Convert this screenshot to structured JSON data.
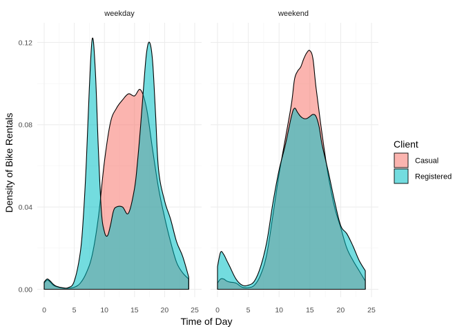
{
  "chart_data": {
    "type": "area",
    "subtype": "density",
    "facets": [
      "weekday",
      "weekend"
    ],
    "xlabel": "Time of Day",
    "ylabel": "Density of Bike Rentals",
    "xlim": [
      0,
      24
    ],
    "ylim": [
      0,
      0.125
    ],
    "x_ticks": [
      0,
      5,
      10,
      15,
      20,
      25
    ],
    "x_tick_labels": [
      "0",
      "5",
      "10",
      "15",
      "20",
      "25"
    ],
    "y_ticks": [
      0,
      0.04,
      0.08,
      0.12
    ],
    "y_tick_labels": [
      "0.00",
      "0.04",
      "0.08",
      "0.12"
    ],
    "grid": true,
    "legend": {
      "title": "Client",
      "position": "right",
      "entries": [
        "Casual",
        "Registered"
      ]
    },
    "colors": {
      "Casual": "#F8766D",
      "Registered": "#00BFC4",
      "outline": "#000000"
    },
    "fill_opacity": 0.55,
    "panels": [
      {
        "facet": "weekday",
        "series": [
          {
            "name": "Casual",
            "x": [
              0,
              0.5,
              1,
              1.5,
              2,
              3,
              4,
              5,
              6,
              7,
              8,
              9,
              10,
              11,
              12,
              13,
              14,
              15,
              16,
              17,
              18,
              19,
              20,
              21,
              22,
              23,
              24
            ],
            "y": [
              0.003,
              0.0045,
              0.0035,
              0.002,
              0.0013,
              0.0006,
              0.0005,
              0.001,
              0.003,
              0.008,
              0.017,
              0.035,
              0.062,
              0.081,
              0.088,
              0.092,
              0.095,
              0.094,
              0.097,
              0.088,
              0.068,
              0.049,
              0.035,
              0.023,
              0.013,
              0.008,
              0.005
            ]
          },
          {
            "name": "Registered",
            "x": [
              0,
              0.5,
              1,
              1.5,
              2,
              3,
              4,
              5,
              6,
              6.5,
              7,
              7.5,
              8,
              8.5,
              9,
              9.5,
              10,
              10.5,
              11,
              11.5,
              12,
              13,
              14,
              15,
              15.5,
              16,
              16.5,
              17,
              17.5,
              18,
              18.5,
              19,
              20,
              21,
              22,
              23,
              24
            ],
            "y": [
              0.0035,
              0.005,
              0.004,
              0.0025,
              0.0015,
              0.0008,
              0.0008,
              0.004,
              0.018,
              0.035,
              0.062,
              0.098,
              0.122,
              0.106,
              0.068,
              0.038,
              0.028,
              0.026,
              0.031,
              0.038,
              0.04,
              0.04,
              0.037,
              0.049,
              0.062,
              0.079,
              0.098,
              0.115,
              0.12,
              0.111,
              0.085,
              0.058,
              0.043,
              0.034,
              0.023,
              0.016,
              0.006
            ]
          }
        ]
      },
      {
        "facet": "weekend",
        "series": [
          {
            "name": "Casual",
            "x": [
              0,
              0.5,
              1,
              1.5,
              2,
              3,
              4,
              5,
              6,
              7,
              8,
              9,
              10,
              11,
              12,
              12.5,
              13,
              13.5,
              14,
              14.5,
              15,
              15.5,
              16,
              17,
              18,
              19,
              20,
              21,
              22,
              23,
              24
            ],
            "y": [
              0.003,
              0.005,
              0.005,
              0.004,
              0.0035,
              0.003,
              0.001,
              0.0008,
              0.002,
              0.007,
              0.017,
              0.036,
              0.056,
              0.073,
              0.09,
              0.102,
              0.106,
              0.108,
              0.112,
              0.115,
              0.116,
              0.112,
              0.098,
              0.075,
              0.055,
              0.04,
              0.03,
              0.02,
              0.014,
              0.009,
              0.004
            ]
          },
          {
            "name": "Registered",
            "x": [
              0,
              0.5,
              1,
              1.5,
              2,
              3,
              4,
              5,
              6,
              7,
              8,
              9,
              10,
              11,
              12,
              12.5,
              13,
              13.5,
              14,
              14.5,
              15,
              15.5,
              16,
              16.5,
              17,
              18,
              19,
              20,
              21,
              22,
              23,
              24
            ],
            "y": [
              0.011,
              0.018,
              0.017,
              0.014,
              0.011,
              0.005,
              0.002,
              0.002,
              0.004,
              0.011,
              0.023,
              0.042,
              0.058,
              0.07,
              0.084,
              0.088,
              0.086,
              0.084,
              0.083,
              0.083,
              0.084,
              0.085,
              0.084,
              0.079,
              0.07,
              0.057,
              0.043,
              0.031,
              0.027,
              0.021,
              0.014,
              0.009
            ]
          }
        ]
      }
    ]
  }
}
